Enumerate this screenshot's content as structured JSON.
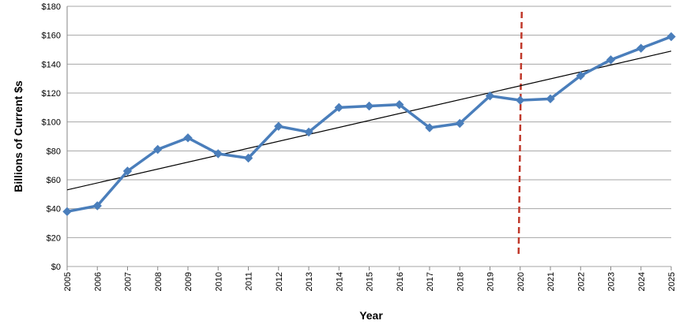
{
  "chart_data": {
    "type": "line",
    "x_label": "Year",
    "y_label": "Billions of Current $s",
    "categories": [
      "2005",
      "2006",
      "2007",
      "2008",
      "2009",
      "2010",
      "2011",
      "2012",
      "2013",
      "2014",
      "2015",
      "2016",
      "2017",
      "2018",
      "2019",
      "2020",
      "2021",
      "2022",
      "2023",
      "2024",
      "2025"
    ],
    "values": [
      38,
      42,
      66,
      81,
      89,
      78,
      75,
      97,
      93,
      110,
      111,
      112,
      96,
      99,
      118,
      115,
      116,
      132,
      143,
      151,
      159
    ],
    "color": "#4a7ebb",
    "trendline": {
      "values": [
        53,
        149
      ],
      "color": "#000000"
    },
    "reference_x": {
      "category": "2020",
      "color": "#c0392b"
    },
    "ylim": [
      0,
      180
    ],
    "yticks": [
      {
        "value": 0,
        "label": "$0"
      },
      {
        "value": 20,
        "label": "$20"
      },
      {
        "value": 40,
        "label": "$40"
      },
      {
        "value": 60,
        "label": "$60"
      },
      {
        "value": 80,
        "label": "$80"
      },
      {
        "value": 100,
        "label": "$100"
      },
      {
        "value": 120,
        "label": "$120"
      },
      {
        "value": 140,
        "label": "$140"
      },
      {
        "value": 160,
        "label": "$160"
      },
      {
        "value": 180,
        "label": "$180"
      }
    ],
    "grid": true
  }
}
